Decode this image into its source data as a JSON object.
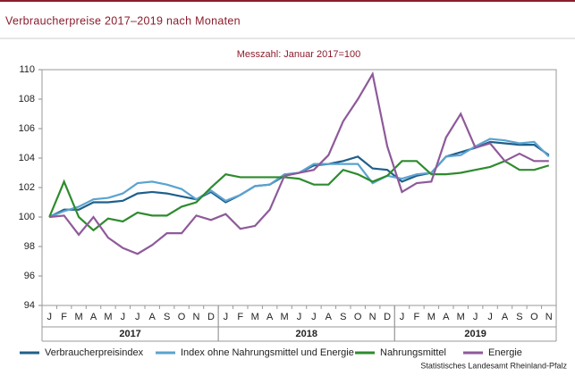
{
  "chart_data": {
    "type": "line",
    "title": "Verbraucherpreise 2017–2019 nach Monaten",
    "subtitle": "Messzahl: Januar 2017=100",
    "source": "Statistisches Landesamt Rheinland-Pfalz",
    "categories": [
      "J",
      "F",
      "M",
      "A",
      "M",
      "J",
      "J",
      "A",
      "S",
      "O",
      "N",
      "D",
      "J",
      "F",
      "M",
      "A",
      "M",
      "J",
      "J",
      "A",
      "S",
      "O",
      "N",
      "D",
      "J",
      "F",
      "M",
      "A",
      "M",
      "J",
      "J",
      "A",
      "S",
      "O",
      "N"
    ],
    "year_labels": [
      "2017",
      "2018",
      "2019"
    ],
    "ylim": [
      94,
      110
    ],
    "yticks": [
      94,
      96,
      98,
      100,
      102,
      104,
      106,
      108,
      110
    ],
    "series": [
      {
        "name": "Verbraucherpreisindex",
        "color": "#1f5f8b",
        "values": [
          100,
          100.5,
          100.5,
          101.0,
          101.0,
          101.1,
          101.6,
          101.7,
          101.6,
          101.4,
          101.2,
          101.7,
          101.0,
          101.5,
          102.1,
          102.2,
          102.8,
          103.0,
          103.5,
          103.6,
          103.8,
          104.1,
          103.3,
          103.2,
          102.4,
          102.8,
          103.0,
          104.1,
          104.4,
          104.7,
          105.1,
          105.0,
          104.9,
          104.9,
          104.2
        ]
      },
      {
        "name": "Index ohne Nahrungsmittel und Energie",
        "color": "#5ba3d0",
        "values": [
          100,
          100.4,
          100.7,
          101.2,
          101.3,
          101.6,
          102.3,
          102.4,
          102.2,
          101.9,
          101.2,
          101.8,
          101.1,
          101.5,
          102.1,
          102.2,
          102.9,
          103.0,
          103.6,
          103.6,
          103.6,
          103.6,
          102.3,
          102.8,
          102.6,
          102.9,
          103.0,
          104.1,
          104.2,
          104.8,
          105.3,
          105.2,
          105.0,
          105.1,
          104.1
        ]
      },
      {
        "name": "Nahrungsmittel",
        "color": "#2e8b2e",
        "values": [
          100,
          102.4,
          100.0,
          99.1,
          99.9,
          99.7,
          100.3,
          100.1,
          100.1,
          100.7,
          101.0,
          102.0,
          102.9,
          102.7,
          102.7,
          102.7,
          102.7,
          102.6,
          102.2,
          102.2,
          103.2,
          102.9,
          102.4,
          102.8,
          103.8,
          103.8,
          102.9,
          102.9,
          103.0,
          103.2,
          103.4,
          103.8,
          103.2,
          103.2,
          103.5
        ]
      },
      {
        "name": "Energie",
        "color": "#8e5a9a",
        "values": [
          100,
          100.1,
          98.8,
          100.0,
          98.6,
          97.9,
          97.5,
          98.1,
          98.9,
          98.9,
          100.1,
          99.8,
          100.2,
          99.2,
          99.4,
          100.5,
          102.8,
          103.0,
          103.2,
          104.2,
          106.5,
          108.0,
          109.7,
          104.8,
          101.7,
          102.3,
          102.4,
          105.4,
          107.0,
          104.7,
          105.0,
          103.8,
          104.3,
          103.8,
          103.8
        ]
      }
    ]
  }
}
